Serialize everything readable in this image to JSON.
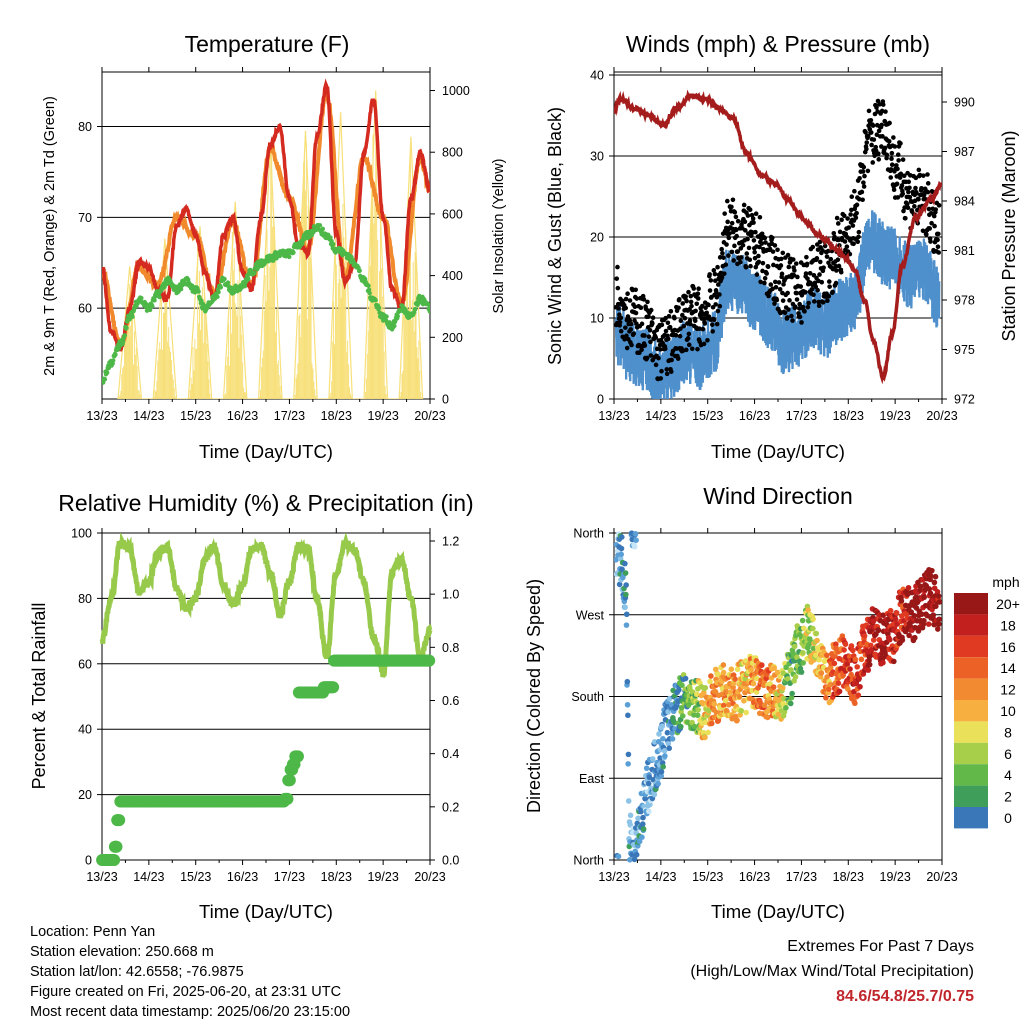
{
  "x_ticks": [
    "13/23",
    "14/23",
    "15/23",
    "16/23",
    "17/23",
    "18/23",
    "19/23",
    "20/23"
  ],
  "panels": {
    "temperature": {
      "title": "Temperature (F)",
      "ylabel_left": "2m & 9m T (Red, Orange) & 2m Td (Green)",
      "ylabel_right": "Solar Insolation (Yellow)",
      "xlabel": "Time (Day/UTC)",
      "left_ticks": [
        "60",
        "70",
        "80"
      ],
      "right_ticks": [
        "0",
        "200",
        "400",
        "600",
        "800",
        "1000"
      ]
    },
    "winds": {
      "title": "Winds (mph) & Pressure (mb)",
      "ylabel_left": "Sonic Wind & Gust (Blue, Black)",
      "ylabel_right": "Station Pressure (Maroon)",
      "xlabel": "Time (Day/UTC)",
      "left_ticks": [
        "0",
        "10",
        "20",
        "30",
        "40"
      ],
      "right_ticks": [
        "972",
        "975",
        "978",
        "981",
        "984",
        "987",
        "990"
      ]
    },
    "humidity": {
      "title": "Relative Humidity (%) & Precipitation (in)",
      "ylabel_left": "Percent & Total Rainfall",
      "xlabel": "Time (Day/UTC)",
      "left_ticks": [
        "0",
        "20",
        "40",
        "60",
        "80",
        "100"
      ],
      "right_ticks": [
        "0.0",
        "0.2",
        "0.4",
        "0.6",
        "0.8",
        "1.0",
        "1.2"
      ]
    },
    "direction": {
      "title": "Wind Direction",
      "ylabel_left": "Direction (Colored By Speed)",
      "xlabel": "Time (Day/UTC)",
      "left_ticks": [
        "North",
        "East",
        "South",
        "West",
        "North"
      ],
      "legend_title": "mph",
      "legend_labels": [
        "20+",
        "18",
        "16",
        "14",
        "12",
        "10",
        "8",
        "6",
        "4",
        "2",
        "0"
      ]
    }
  },
  "colors": {
    "temp_2m": "#d42a20",
    "temp_9m": "#f08a2c",
    "dewpoint": "#4db848",
    "solar": "#f7e07a",
    "wind": "#4f90cc",
    "gust": "#000000",
    "pressure": "#a51c1c",
    "rh": "#97c94a",
    "precip": "#4db848",
    "extremes": "#c0272d",
    "speed_scale": [
      "#c6e6f7",
      "#8cc3e6",
      "#5a9fd6",
      "#3a77b8",
      "#3e9e5a",
      "#63b84a",
      "#a8cf4a",
      "#ebe05a",
      "#f7b040",
      "#f28a32",
      "#ec6226",
      "#e03a22",
      "#c21f1f",
      "#981818"
    ]
  },
  "chart_data": [
    {
      "type": "line",
      "title": "Temperature (F)",
      "xlabel": "Time (Day/UTC)",
      "ylabel": "2m & 9m T (Red, Orange) & 2m Td (Green)",
      "ylabel_right": "Solar Insolation (Yellow)",
      "x_range_days": [
        13.958,
        20.958
      ],
      "ylim": [
        50,
        86
      ],
      "ylim_right": [
        0,
        1060
      ],
      "series": [
        {
          "name": "2m T",
          "x": [
            13.96,
            14.15,
            14.35,
            14.55,
            14.75,
            14.96,
            15.15,
            15.35,
            15.55,
            15.75,
            15.96,
            16.15,
            16.35,
            16.55,
            16.75,
            16.96,
            17.15,
            17.35,
            17.55,
            17.75,
            17.96,
            18.15,
            18.35,
            18.55,
            18.75,
            18.96,
            19.15,
            19.35,
            19.55,
            19.75,
            19.96,
            20.15,
            20.35,
            20.55,
            20.75,
            20.96
          ],
          "values": [
            64.5,
            57.5,
            55.5,
            60,
            65,
            64.5,
            62,
            61,
            69,
            71,
            68,
            64,
            61,
            68,
            70,
            64,
            62,
            70,
            78,
            80,
            72,
            67,
            66,
            79,
            84.5,
            68,
            63,
            65,
            77,
            83,
            70,
            62,
            60,
            72,
            77,
            73
          ]
        },
        {
          "name": "9m T",
          "x": [
            13.96,
            14.35,
            14.75,
            15.15,
            15.55,
            15.96,
            16.35,
            16.75,
            17.15,
            17.55,
            17.96,
            18.35,
            18.75,
            19.15,
            19.55,
            19.96,
            20.35,
            20.75,
            20.96
          ],
          "values": [
            64,
            56,
            64.5,
            62.5,
            70,
            68,
            61.5,
            69.5,
            62.5,
            77.5,
            72,
            66.5,
            83.5,
            63.5,
            76.5,
            70,
            60.5,
            76.5,
            73
          ]
        },
        {
          "name": "2m Td",
          "x": [
            13.96,
            14.15,
            14.35,
            14.55,
            14.75,
            14.96,
            15.15,
            15.35,
            15.55,
            15.75,
            15.96,
            16.15,
            16.35,
            16.55,
            16.75,
            16.96,
            17.15,
            17.35,
            17.55,
            17.75,
            17.96,
            18.15,
            18.35,
            18.55,
            18.75,
            18.96,
            19.15,
            19.35,
            19.55,
            19.75,
            19.96,
            20.15,
            20.35,
            20.55,
            20.75,
            20.96
          ],
          "values": [
            52,
            54,
            56,
            59,
            61,
            60,
            61.5,
            63,
            62,
            63,
            62,
            60,
            61,
            63,
            62,
            62.5,
            64,
            65,
            65.5,
            66,
            66,
            67,
            68,
            69,
            68,
            66.5,
            66,
            65,
            63,
            61,
            59,
            58,
            60,
            59,
            61,
            60
          ]
        },
        {
          "name": "Solar Insolation",
          "axis": "right",
          "x": [
            14.3,
            14.55,
            14.8,
            15.05,
            15.3,
            15.55,
            15.8,
            16.05,
            16.3,
            16.55,
            16.8,
            17.05,
            17.3,
            17.55,
            17.8,
            18.05,
            18.3,
            18.55,
            18.8,
            19.05,
            19.3,
            19.55,
            19.8,
            20.05,
            20.3,
            20.55,
            20.8
          ],
          "values": [
            0,
            430,
            0,
            0,
            520,
            0,
            0,
            560,
            0,
            0,
            640,
            0,
            0,
            830,
            0,
            0,
            870,
            0,
            0,
            930,
            0,
            0,
            1000,
            0,
            0,
            850,
            0
          ]
        }
      ]
    },
    {
      "type": "scatter",
      "title": "Winds (mph) & Pressure (mb)",
      "xlabel": "Time (Day/UTC)",
      "ylabel": "Sonic Wind & Gust (Blue, Black)",
      "ylabel_right": "Station Pressure (Maroon)",
      "x_range_days": [
        13.958,
        20.958
      ],
      "ylim": [
        0,
        40
      ],
      "ylim_right": [
        972,
        992
      ],
      "series": [
        {
          "name": "Sonic Wind",
          "x": [
            14.0,
            14.3,
            14.6,
            14.9,
            15.2,
            15.5,
            15.8,
            16.1,
            16.4,
            16.7,
            17.0,
            17.3,
            17.6,
            17.9,
            18.2,
            18.5,
            18.8,
            19.1,
            19.4,
            19.7,
            20.0,
            20.3,
            20.6,
            20.9
          ],
          "values": [
            8,
            6,
            5,
            3,
            4,
            6,
            5,
            7,
            15,
            14,
            12,
            10,
            7,
            8,
            10,
            9,
            11,
            12,
            20,
            18,
            17,
            15,
            16,
            12
          ]
        },
        {
          "name": "Gust",
          "x": [
            14.0,
            14.3,
            14.6,
            14.9,
            15.2,
            15.5,
            15.8,
            16.1,
            16.4,
            16.7,
            17.0,
            17.3,
            17.6,
            17.9,
            18.2,
            18.5,
            18.8,
            19.1,
            19.4,
            19.7,
            20.0,
            20.3,
            20.6,
            20.9
          ],
          "values": [
            13,
            10,
            9,
            6,
            7,
            10,
            10,
            12,
            21,
            20,
            19,
            16,
            14,
            13,
            15,
            16,
            19,
            22,
            32,
            34,
            28,
            25,
            24,
            20
          ]
        },
        {
          "name": "Station Pressure",
          "axis": "right",
          "x": [
            13.96,
            14.1,
            14.4,
            14.7,
            15.0,
            15.3,
            15.6,
            15.9,
            16.2,
            16.5,
            16.8,
            17.1,
            17.4,
            17.7,
            17.9,
            18.1,
            18.3,
            18.5,
            18.7,
            18.9,
            19.1,
            19.3,
            19.5,
            19.7,
            19.9,
            20.1,
            20.4,
            20.7,
            20.96
          ],
          "values": [
            989.5,
            990.2,
            989.6,
            989.2,
            988.6,
            989.6,
            990.4,
            990.2,
            989.6,
            989.0,
            986.8,
            985.6,
            985.0,
            984.0,
            983.2,
            982.6,
            982.0,
            981.6,
            981.0,
            980.6,
            979.8,
            978.0,
            975.5,
            973.3,
            976.0,
            980.0,
            983.0,
            984.0,
            985.0
          ]
        }
      ]
    },
    {
      "type": "line",
      "title": "Relative Humidity (%) & Precipitation (in)",
      "xlabel": "Time (Day/UTC)",
      "ylabel": "Percent & Total Rainfall",
      "x_range_days": [
        13.958,
        20.958
      ],
      "ylim": [
        0,
        100
      ],
      "ylim_right": [
        0,
        1.25
      ],
      "series": [
        {
          "name": "Relative Humidity",
          "x": [
            13.96,
            14.15,
            14.35,
            14.55,
            14.75,
            14.96,
            15.15,
            15.35,
            15.55,
            15.75,
            15.96,
            16.15,
            16.35,
            16.55,
            16.75,
            16.96,
            17.15,
            17.35,
            17.55,
            17.75,
            17.96,
            18.15,
            18.35,
            18.55,
            18.75,
            18.96,
            19.15,
            19.35,
            19.55,
            19.75,
            19.96,
            20.15,
            20.35,
            20.55,
            20.75,
            20.96
          ],
          "values": [
            67,
            80,
            97,
            95,
            82,
            85,
            94,
            96,
            83,
            77,
            80,
            92,
            96,
            84,
            78,
            84,
            95,
            96,
            88,
            75,
            85,
            96,
            95,
            80,
            62,
            88,
            97,
            95,
            85,
            68,
            57,
            88,
            92,
            80,
            62,
            70
          ]
        },
        {
          "name": "Total Precipitation",
          "axis": "right",
          "x": [
            13.96,
            14.2,
            14.25,
            14.3,
            14.35,
            15.0,
            16.0,
            17.0,
            17.8,
            17.9,
            17.95,
            18.0,
            18.05,
            18.1,
            18.2,
            18.5,
            18.85,
            18.95,
            19.2,
            19.6,
            20.0,
            20.5,
            20.96
          ],
          "values": [
            0.0,
            0.0,
            0.05,
            0.15,
            0.22,
            0.22,
            0.22,
            0.22,
            0.22,
            0.23,
            0.3,
            0.34,
            0.36,
            0.39,
            0.63,
            0.63,
            0.65,
            0.75,
            0.75,
            0.75,
            0.75,
            0.75,
            0.75
          ]
        }
      ]
    },
    {
      "type": "scatter",
      "title": "Wind Direction",
      "xlabel": "Time (Day/UTC)",
      "ylabel": "Direction (Colored By Speed)",
      "x_range_days": [
        13.958,
        20.958
      ],
      "ylim": [
        0,
        360
      ],
      "series": [
        {
          "name": "Direction",
          "x": [
            14.0,
            14.1,
            14.2,
            14.3,
            14.4,
            14.5,
            14.7,
            14.9,
            15.1,
            15.3,
            15.5,
            15.7,
            15.9,
            16.1,
            16.3,
            16.5,
            16.7,
            16.9,
            17.1,
            17.3,
            17.5,
            17.7,
            17.9,
            18.1,
            18.3,
            18.5,
            18.7,
            18.9,
            19.1,
            19.3,
            19.5,
            19.7,
            19.9,
            20.1,
            20.3,
            20.5,
            20.7,
            20.9
          ],
          "values": [
            345,
            330,
            300,
            20,
            10,
            45,
            80,
            110,
            150,
            170,
            180,
            170,
            160,
            180,
            185,
            180,
            190,
            195,
            190,
            185,
            180,
            200,
            230,
            250,
            230,
            200,
            210,
            220,
            200,
            230,
            250,
            240,
            245,
            270,
            270,
            280,
            290,
            280
          ],
          "speeds": [
            3,
            4,
            5,
            4,
            3,
            5,
            3,
            4,
            4,
            6,
            8,
            9,
            12,
            14,
            13,
            14,
            12,
            13,
            15,
            14,
            12,
            8,
            9,
            10,
            12,
            14,
            16,
            17,
            18,
            18,
            19,
            20,
            19,
            18,
            20,
            21,
            21,
            20
          ]
        }
      ]
    }
  ],
  "info": {
    "location": "Location: Penn Yan",
    "elevation": "Station elevation: 250.668 m",
    "latlon": "Station lat/lon: 42.6558; -76.9875",
    "created": "Figure created on Fri, 2025-06-20, at 23:31 UTC",
    "recent": "Most recent data timestamp: 2025/06/20 23:15:00"
  },
  "extremes": {
    "line1": "Extremes For Past 7 Days",
    "line2": "(High/Low/Max Wind/Total Precipitation)",
    "values": "84.6/54.8/25.7/0.75"
  }
}
